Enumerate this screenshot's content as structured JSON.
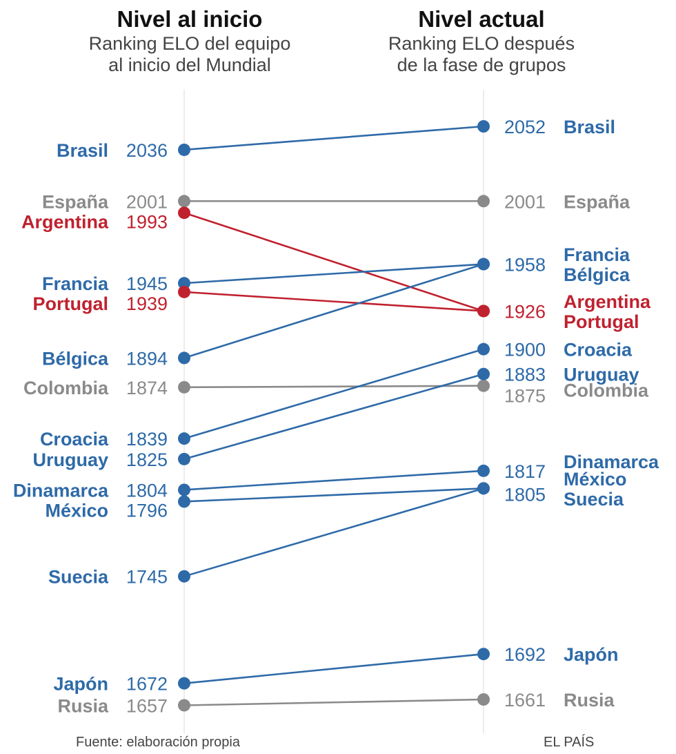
{
  "chart_data": {
    "type": "slope",
    "left_header": {
      "title": "Nivel al inicio",
      "subtitle_lines": [
        "Ranking ELO del equipo",
        "al inicio del Mundial"
      ]
    },
    "right_header": {
      "title": "Nivel actual",
      "subtitle_lines": [
        "Ranking ELO después",
        "de la fase de grupos"
      ]
    },
    "source": "Fuente: elaboración propia",
    "brand": "EL PAÍS",
    "colors": {
      "up": "#2e6aa8",
      "flat": "#8a8a8a",
      "down": "#c0212f",
      "axis": "#e6e6e6"
    },
    "teams": [
      {
        "name": "Brasil",
        "start": 2036,
        "end": 2052,
        "trend": "up"
      },
      {
        "name": "España",
        "start": 2001,
        "end": 2001,
        "trend": "flat"
      },
      {
        "name": "Argentina",
        "start": 1993,
        "end": 1926,
        "trend": "down"
      },
      {
        "name": "Francia",
        "start": 1945,
        "end": 1958,
        "trend": "up"
      },
      {
        "name": "Portugal",
        "start": 1939,
        "end": 1926,
        "trend": "down"
      },
      {
        "name": "Bélgica",
        "start": 1894,
        "end": 1958,
        "trend": "up"
      },
      {
        "name": "Colombia",
        "start": 1874,
        "end": 1875,
        "trend": "flat"
      },
      {
        "name": "Croacia",
        "start": 1839,
        "end": 1900,
        "trend": "up"
      },
      {
        "name": "Uruguay",
        "start": 1825,
        "end": 1883,
        "trend": "up"
      },
      {
        "name": "Dinamarca",
        "start": 1804,
        "end": 1817,
        "trend": "up"
      },
      {
        "name": "México",
        "start": 1796,
        "end": 1805,
        "trend": "up"
      },
      {
        "name": "Suecia",
        "start": 1745,
        "end": 1805,
        "trend": "up"
      },
      {
        "name": "Japón",
        "start": 1672,
        "end": 1692,
        "trend": "up"
      },
      {
        "name": "Rusia",
        "start": 1657,
        "end": 1661,
        "trend": "flat"
      }
    ],
    "right_labels": [
      {
        "value_text": "2052",
        "team_lines": [
          "Brasil"
        ],
        "trend": "up"
      },
      {
        "value_text": "2001",
        "team_lines": [
          "España"
        ],
        "trend": "flat"
      },
      {
        "value_text": "1958",
        "team_lines": [
          "Francia",
          "Bélgica"
        ],
        "trend": "up"
      },
      {
        "value_text": "1926",
        "team_lines": [
          "Argentina",
          "Portugal"
        ],
        "trend": "down"
      },
      {
        "value_text": "1900",
        "team_lines": [
          "Croacia"
        ],
        "trend": "up"
      },
      {
        "value_text": "1883",
        "team_lines": [
          "Uruguay"
        ],
        "trend": "up"
      },
      {
        "value_text": "1875",
        "team_lines": [
          "Colombia"
        ],
        "trend": "flat"
      },
      {
        "value_text": "1817",
        "team_lines": [
          "Dinamarca"
        ],
        "trend": "up"
      },
      {
        "value_text": "1805",
        "team_lines": [
          "México",
          "Suecia"
        ],
        "trend": "up"
      },
      {
        "value_text": "1692",
        "team_lines": [
          "Japón"
        ],
        "trend": "up"
      },
      {
        "value_text": "1661",
        "team_lines": [
          "Rusia"
        ],
        "trend": "flat"
      }
    ]
  }
}
